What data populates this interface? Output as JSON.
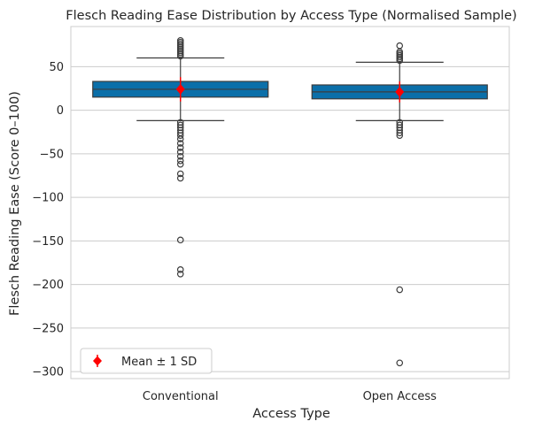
{
  "chart_data": {
    "type": "box",
    "title": "Flesch Reading Ease Distribution by Access Type (Normalised Sample)",
    "xlabel": "Access Type",
    "ylabel": "Flesch Reading Ease (Score 0–100)",
    "ylim": [
      -308,
      96
    ],
    "yticks": [
      50,
      0,
      -50,
      -100,
      -150,
      -200,
      -250,
      -300
    ],
    "grid": true,
    "legend": {
      "placement": "bottom-left",
      "label": "Mean ± 1 SD"
    },
    "colors": {
      "box": "#0b6fa9",
      "mean": "#ff0000",
      "grid": "#cccccc",
      "spine": "#cccccc"
    },
    "categories": [
      "Conventional",
      "Open Access"
    ],
    "boxes": [
      {
        "category": "Conventional",
        "whisker_low": -12,
        "q1": 15,
        "median": 24,
        "q3": 33,
        "whisker_high": 60,
        "mean": 24,
        "sd": 14,
        "outliers": [
          62,
          64,
          66,
          68,
          70,
          72,
          74,
          76,
          78,
          80,
          -14,
          -17,
          -20,
          -23,
          -26,
          -29,
          -33,
          -38,
          -43,
          -48,
          -53,
          -58,
          -62,
          -73,
          -78,
          -149,
          -183,
          -188
        ]
      },
      {
        "category": "Open Access",
        "whisker_low": -12,
        "q1": 13,
        "median": 21,
        "q3": 29,
        "whisker_high": 55,
        "mean": 21,
        "sd": 12,
        "outliers": [
          57,
          59,
          61,
          63,
          65,
          67,
          74,
          -14,
          -17,
          -20,
          -23,
          -26,
          -29,
          -206,
          -290
        ]
      }
    ]
  }
}
